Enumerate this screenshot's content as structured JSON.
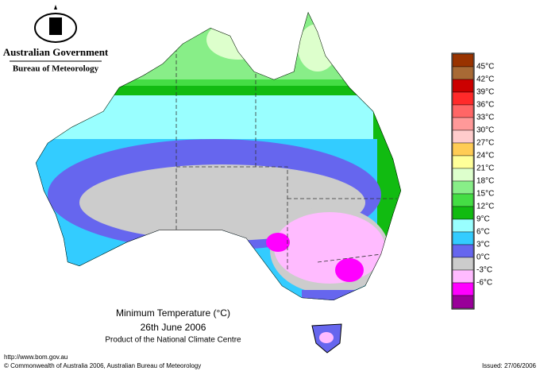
{
  "header": {
    "agency": "Australian Government",
    "bureau": "Bureau of Meteorology"
  },
  "legend": [
    {
      "label": "45°C",
      "color": "#993300"
    },
    {
      "label": "42°C",
      "color": "#a86a35"
    },
    {
      "label": "39°C",
      "color": "#cc0000"
    },
    {
      "label": "36°C",
      "color": "#ff2a2a"
    },
    {
      "label": "33°C",
      "color": "#ff6666"
    },
    {
      "label": "30°C",
      "color": "#ff9999"
    },
    {
      "label": "27°C",
      "color": "#ffcccc"
    },
    {
      "label": "24°C",
      "color": "#ffcc55"
    },
    {
      "label": "21°C",
      "color": "#ffff99"
    },
    {
      "label": "18°C",
      "color": "#ddffcc"
    },
    {
      "label": "15°C",
      "color": "#88ee88"
    },
    {
      "label": "12°C",
      "color": "#44dd44"
    },
    {
      "label": "9°C",
      "color": "#11bb11"
    },
    {
      "label": "6°C",
      "color": "#99ffff"
    },
    {
      "label": "3°C",
      "color": "#33ccff"
    },
    {
      "label": "0°C",
      "color": "#6666ee"
    },
    {
      "label": "-3°C",
      "color": "#cccccc"
    },
    {
      "label": "-6°C",
      "color": "#ffbbff"
    }
  ],
  "legend_last_color": "#ff00ff",
  "legend_bottom_color": "#990099",
  "caption": {
    "title": "Minimum Temperature (°C)",
    "date": "26th June 2006",
    "product": "Product of the National Climate Centre"
  },
  "footer": {
    "url": "http://www.bom.gov.au",
    "copyright": "© Commonwealth of Australia 2006, Australian Bureau of Meteorology",
    "issued": "Issued: 27/06/2006"
  }
}
